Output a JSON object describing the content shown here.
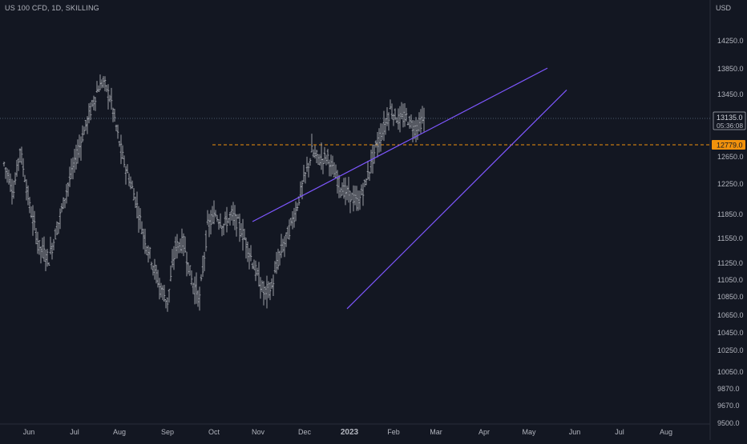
{
  "header": {
    "symbol_title": "US 100 CFD, 1D, SKILLING",
    "currency": "USD"
  },
  "colors": {
    "background": "#131722",
    "bars": "#a8abb3",
    "wedge_lines": "#7e57ff",
    "support_line": "#f2920c",
    "price_line": "#5d6f85",
    "axis_text": "#b2b5be"
  },
  "chart_data": {
    "type": "ohlc-bar",
    "title": "US 100 CFD, 1D, SKILLING",
    "x_ticks": [
      "Jun",
      "Jul",
      "Aug",
      "Sep",
      "Oct",
      "Nov",
      "Dec",
      "2023",
      "Feb",
      "Mar",
      "Apr",
      "May",
      "Jun",
      "Jul",
      "Aug"
    ],
    "x_tick_bold": "2023",
    "y_ticks": [
      "14250.0",
      "13850.0",
      "13450.0",
      "12650.0",
      "12250.0",
      "11850.0",
      "11550.0",
      "11250.0",
      "11050.0",
      "10850.0",
      "10650.0",
      "10450.0",
      "10250.0",
      "10050.0",
      "9870.0",
      "9670.0",
      "9500.0"
    ],
    "y_range": [
      9500,
      14650
    ],
    "current_price": {
      "label": "13135.0",
      "countdown": "05:36:08",
      "value": 13135
    },
    "support_level": {
      "label": "12779.0",
      "value": 12779,
      "start_index": 160
    },
    "wedge_upper": {
      "from": [
        100,
        11760
      ],
      "to": [
        312,
        13860
      ]
    },
    "wedge_lower": {
      "from": [
        136,
        10720
      ],
      "to": [
        324,
        13520
      ]
    },
    "price_anchors": [
      [
        0,
        12550
      ],
      [
        6,
        12150
      ],
      [
        10,
        12750
      ],
      [
        16,
        11950
      ],
      [
        22,
        11450
      ],
      [
        28,
        11300
      ],
      [
        34,
        11750
      ],
      [
        40,
        12250
      ],
      [
        46,
        12700
      ],
      [
        52,
        13100
      ],
      [
        58,
        13500
      ],
      [
        62,
        13660
      ],
      [
        67,
        13350
      ],
      [
        72,
        12800
      ],
      [
        77,
        12400
      ],
      [
        82,
        12050
      ],
      [
        87,
        11600
      ],
      [
        92,
        11300
      ],
      [
        97,
        10980
      ],
      [
        102,
        10800
      ],
      [
        107,
        11450
      ],
      [
        112,
        11500
      ],
      [
        117,
        11050
      ],
      [
        122,
        10830
      ],
      [
        127,
        11700
      ],
      [
        132,
        11850
      ],
      [
        137,
        11720
      ],
      [
        142,
        11850
      ],
      [
        147,
        11700
      ],
      [
        152,
        11450
      ],
      [
        157,
        11150
      ],
      [
        162,
        10900
      ],
      [
        167,
        10960
      ],
      [
        172,
        11350
      ],
      [
        177,
        11600
      ],
      [
        182,
        11900
      ],
      [
        187,
        12300
      ],
      [
        192,
        12700
      ],
      [
        197,
        12600
      ],
      [
        202,
        12650
      ],
      [
        206,
        12400
      ],
      [
        211,
        12180
      ],
      [
        216,
        12100
      ],
      [
        221,
        12000
      ],
      [
        226,
        12300
      ],
      [
        231,
        12700
      ],
      [
        236,
        12950
      ],
      [
        241,
        13250
      ],
      [
        246,
        13120
      ],
      [
        251,
        13150
      ],
      [
        256,
        13000
      ],
      [
        262,
        13120
      ]
    ]
  }
}
